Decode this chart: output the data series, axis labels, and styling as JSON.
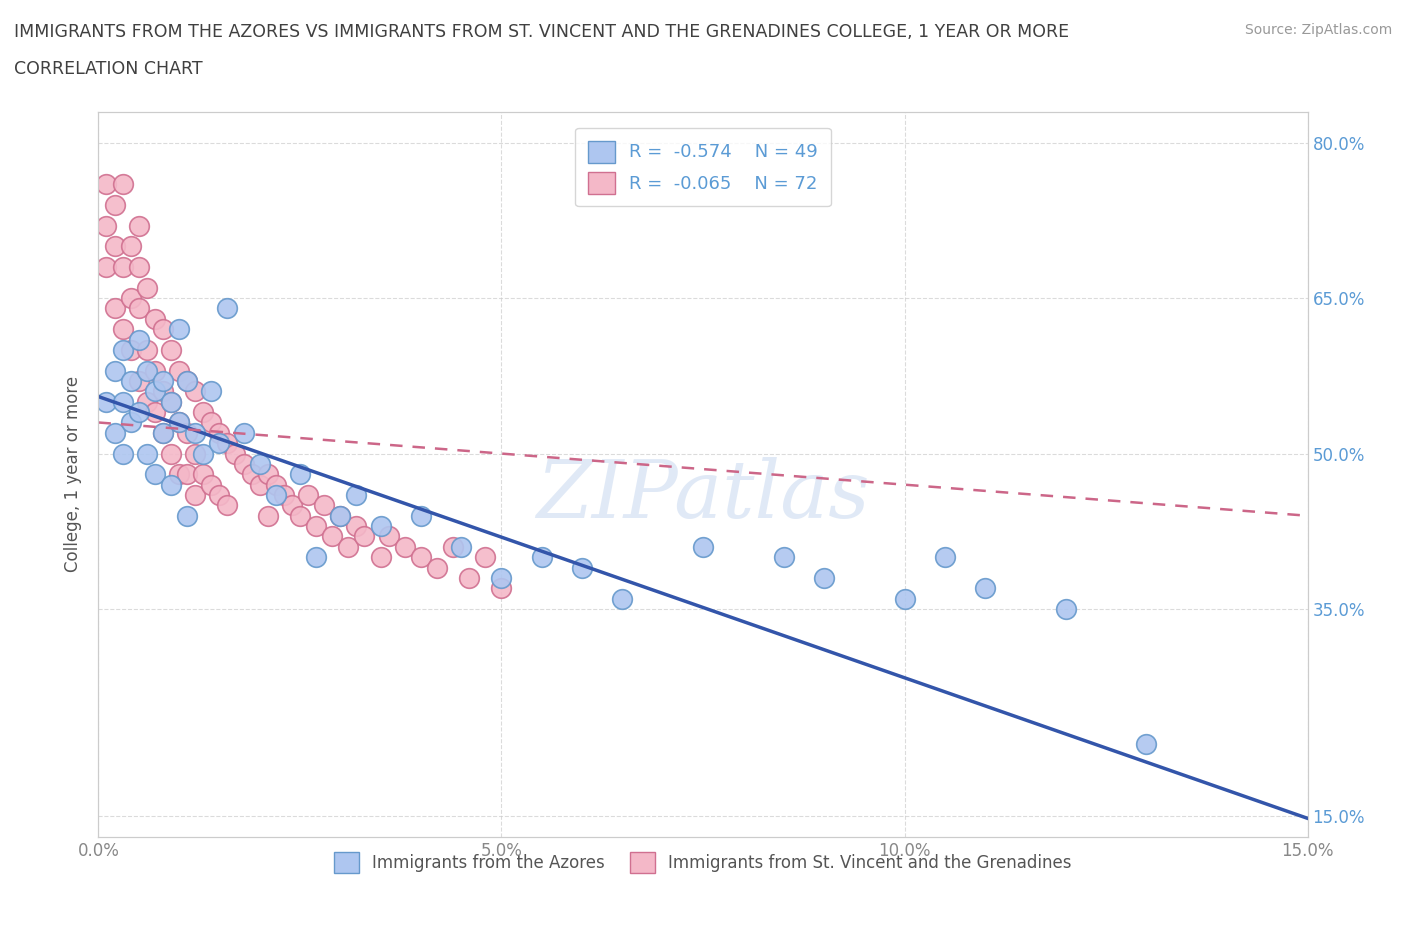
{
  "title_line1": "IMMIGRANTS FROM THE AZORES VS IMMIGRANTS FROM ST. VINCENT AND THE GRENADINES COLLEGE, 1 YEAR OR MORE",
  "title_line2": "CORRELATION CHART",
  "source_text": "Source: ZipAtlas.com",
  "ylabel": "College, 1 year or more",
  "watermark": "ZIPatlas",
  "xlim": [
    0.0,
    0.15
  ],
  "ylim": [
    0.13,
    0.83
  ],
  "grid_color": "#cccccc",
  "background_color": "#ffffff",
  "azores_color": "#aec6f0",
  "azores_edge_color": "#6699cc",
  "svg_color": "#f4b8c8",
  "svg_edge_color": "#d07090",
  "azores_line_color": "#3355aa",
  "svg_line_color": "#cc6688",
  "legend_azores_label": "R =  -0.574    N = 49",
  "legend_svg_label": "R =  -0.065    N = 72",
  "legend_bottom_azores": "Immigrants from the Azores",
  "legend_bottom_svg": "Immigrants from St. Vincent and the Grenadines",
  "title_color": "#404040",
  "axis_label_color": "#555555",
  "tick_color": "#888888",
  "right_tick_color": "#5b9bd5",
  "azores_x": [
    0.001,
    0.002,
    0.002,
    0.003,
    0.003,
    0.003,
    0.004,
    0.004,
    0.005,
    0.005,
    0.006,
    0.006,
    0.007,
    0.007,
    0.008,
    0.008,
    0.009,
    0.009,
    0.01,
    0.01,
    0.011,
    0.011,
    0.012,
    0.013,
    0.014,
    0.015,
    0.016,
    0.018,
    0.02,
    0.022,
    0.025,
    0.027,
    0.03,
    0.032,
    0.035,
    0.04,
    0.045,
    0.05,
    0.055,
    0.06,
    0.065,
    0.075,
    0.085,
    0.09,
    0.1,
    0.105,
    0.11,
    0.12,
    0.13
  ],
  "azores_y": [
    0.55,
    0.58,
    0.52,
    0.6,
    0.55,
    0.5,
    0.57,
    0.53,
    0.61,
    0.54,
    0.58,
    0.5,
    0.56,
    0.48,
    0.57,
    0.52,
    0.55,
    0.47,
    0.53,
    0.62,
    0.57,
    0.44,
    0.52,
    0.5,
    0.56,
    0.51,
    0.64,
    0.52,
    0.49,
    0.46,
    0.48,
    0.4,
    0.44,
    0.46,
    0.43,
    0.44,
    0.41,
    0.38,
    0.4,
    0.39,
    0.36,
    0.41,
    0.4,
    0.38,
    0.36,
    0.4,
    0.37,
    0.35,
    0.22
  ],
  "svg_x": [
    0.001,
    0.001,
    0.001,
    0.002,
    0.002,
    0.002,
    0.003,
    0.003,
    0.003,
    0.004,
    0.004,
    0.004,
    0.005,
    0.005,
    0.005,
    0.005,
    0.006,
    0.006,
    0.006,
    0.007,
    0.007,
    0.007,
    0.008,
    0.008,
    0.008,
    0.009,
    0.009,
    0.009,
    0.01,
    0.01,
    0.01,
    0.011,
    0.011,
    0.011,
    0.012,
    0.012,
    0.012,
    0.013,
    0.013,
    0.014,
    0.014,
    0.015,
    0.015,
    0.016,
    0.016,
    0.017,
    0.018,
    0.019,
    0.02,
    0.021,
    0.021,
    0.022,
    0.023,
    0.024,
    0.025,
    0.026,
    0.027,
    0.028,
    0.029,
    0.03,
    0.031,
    0.032,
    0.033,
    0.035,
    0.036,
    0.038,
    0.04,
    0.042,
    0.044,
    0.046,
    0.048,
    0.05
  ],
  "svg_y": [
    0.72,
    0.76,
    0.68,
    0.7,
    0.64,
    0.74,
    0.68,
    0.76,
    0.62,
    0.7,
    0.65,
    0.6,
    0.72,
    0.64,
    0.57,
    0.68,
    0.66,
    0.6,
    0.55,
    0.63,
    0.58,
    0.54,
    0.62,
    0.56,
    0.52,
    0.6,
    0.55,
    0.5,
    0.58,
    0.53,
    0.48,
    0.57,
    0.52,
    0.48,
    0.56,
    0.5,
    0.46,
    0.54,
    0.48,
    0.53,
    0.47,
    0.52,
    0.46,
    0.51,
    0.45,
    0.5,
    0.49,
    0.48,
    0.47,
    0.48,
    0.44,
    0.47,
    0.46,
    0.45,
    0.44,
    0.46,
    0.43,
    0.45,
    0.42,
    0.44,
    0.41,
    0.43,
    0.42,
    0.4,
    0.42,
    0.41,
    0.4,
    0.39,
    0.41,
    0.38,
    0.4,
    0.37
  ],
  "azores_line_x0": 0.0,
  "azores_line_y0": 0.555,
  "azores_line_x1": 0.15,
  "azores_line_y1": 0.148,
  "svg_line_x0": 0.0,
  "svg_line_y0": 0.53,
  "svg_line_x1": 0.15,
  "svg_line_y1": 0.44
}
